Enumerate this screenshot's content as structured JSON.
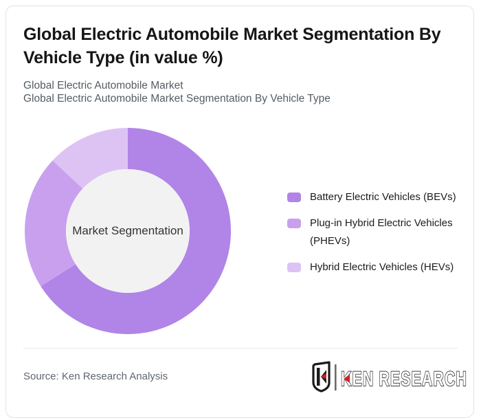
{
  "header": {
    "title": "Global Electric Automobile Market Segmentation By Vehicle Type (in value %)",
    "subtitle_line1": "Global Electric Automobile Market",
    "subtitle_line2": "Global Electric Automobile Market Segmentation By Vehicle Type"
  },
  "chart_data": {
    "type": "pie",
    "subtype": "donut",
    "title": "Global Electric Automobile Market Segmentation By Vehicle Type (in value %)",
    "center_label": "Market Segmentation",
    "unit": "%",
    "categories": [
      "Battery Electric Vehicles (BEVs)",
      "Plug-in Hybrid Electric Vehicles (PHEVs)",
      "Hybrid Electric Vehicles (HEVs)"
    ],
    "values": [
      66,
      21,
      13
    ],
    "colors": [
      "#b184e8",
      "#c9a0ee",
      "#ddc3f4"
    ],
    "start_angle_deg": 0,
    "direction": "clockwise",
    "inner_radius_ratio": 0.6,
    "hole_fill": "#f2f2f2",
    "legend_position": "right",
    "data_labels": "none"
  },
  "legend": {
    "items": [
      {
        "label": "Battery Electric Vehicles (BEVs)",
        "color": "#b184e8"
      },
      {
        "label": "Plug-in Hybrid Electric Vehicles (PHEVs)",
        "color": "#c9a0ee"
      },
      {
        "label": "Hybrid Electric Vehicles (HEVs)",
        "color": "#ddc3f4"
      }
    ]
  },
  "footer": {
    "source": "Source: Ken Research Analysis",
    "brand_name": "KEN RESEARCH"
  },
  "theme": {
    "accent_red": "#cf2127",
    "card_border": "#e2e2e2",
    "title_color": "#161616",
    "subtitle_color": "#545c63"
  }
}
